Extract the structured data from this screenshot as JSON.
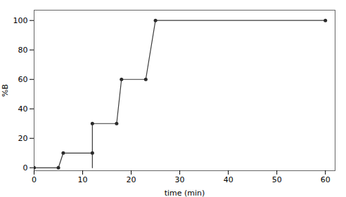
{
  "chart_data": {
    "type": "line",
    "xlabel": "time (min)",
    "ylabel": "%B",
    "series": [
      {
        "type": "line",
        "color": "#3a3a3a",
        "x": [
          0,
          5,
          6,
          12,
          12,
          12,
          17,
          18,
          23,
          25,
          60
        ],
        "values": [
          0,
          0,
          10,
          10,
          0,
          30,
          30,
          60,
          60,
          100,
          100
        ]
      },
      {
        "type": "scatter",
        "color": "#2a2a2a",
        "marker": "circle",
        "x": [
          0,
          5,
          6,
          12,
          12,
          17,
          18,
          23,
          25,
          60
        ],
        "values": [
          0,
          0,
          10,
          10,
          30,
          30,
          60,
          60,
          100,
          100
        ]
      }
    ],
    "xlim": [
      0,
      62
    ],
    "ylim": [
      -2,
      107
    ],
    "xticks": [
      0,
      10,
      20,
      30,
      40,
      50,
      60
    ],
    "yticks": [
      0,
      20,
      40,
      60,
      80,
      100
    ]
  }
}
